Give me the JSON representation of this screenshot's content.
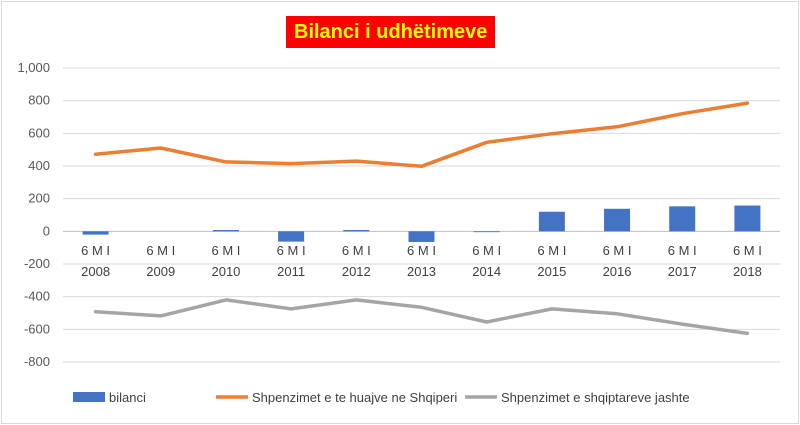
{
  "chart_data": {
    "type": "bar",
    "title": "Bilanci i udhëtimeve",
    "categories": [
      [
        "6 M I",
        "2008"
      ],
      [
        "6 M I",
        "2009"
      ],
      [
        "6 M I",
        "2010"
      ],
      [
        "6 M I",
        "2011"
      ],
      [
        "6 M I",
        "2012"
      ],
      [
        "6 M I",
        "2013"
      ],
      [
        "6 M I",
        "2014"
      ],
      [
        "6 M I",
        "2015"
      ],
      [
        "6 M I",
        "2016"
      ],
      [
        "6 M I",
        "2017"
      ],
      [
        "6 M I",
        "2018"
      ]
    ],
    "ylim": [
      -800,
      1000
    ],
    "yticks": [
      1000,
      800,
      600,
      400,
      200,
      0,
      -200,
      -400,
      -600,
      -800
    ],
    "ytick_labels": [
      "1,000",
      "800",
      "600",
      "400",
      "200",
      "0",
      "-200",
      "-400",
      "-600",
      "-800"
    ],
    "grid": true,
    "legend_position": "bottom",
    "series": [
      {
        "name": "bilanci",
        "type": "bar",
        "color": "#4472c4",
        "values": [
          -20,
          0,
          8,
          -63,
          8,
          -65,
          -5,
          120,
          138,
          153,
          158
        ]
      },
      {
        "name": "Shpenzimet e te huajve ne Shqiperi",
        "type": "line",
        "color": "#ed7d31",
        "values": [
          472,
          510,
          425,
          415,
          430,
          398,
          545,
          598,
          640,
          720,
          785
        ]
      },
      {
        "name": "Shpenzimet e shqiptareve jashte",
        "type": "line",
        "color": "#a5a5a5",
        "values": [
          -492,
          -518,
          -420,
          -475,
          -420,
          -465,
          -555,
          -475,
          -505,
          -568,
          -625
        ]
      }
    ]
  }
}
